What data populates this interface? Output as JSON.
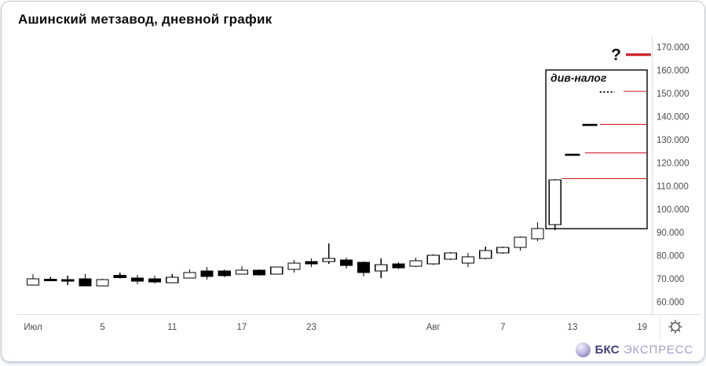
{
  "window": {
    "title": "Ашинский метзавод, дневной график"
  },
  "branding": {
    "name_bold": "БКС",
    "name_light": "ЭКСПРЕСС"
  },
  "controls": {
    "gear_icon": "chart-settings"
  },
  "colors": {
    "level_red": "#cc2128",
    "candle_black": "#000000",
    "candle_white": "#ffffff",
    "axis_text": "#4b4b4b",
    "divider_gray": "#dddddd",
    "box_black": "#000000"
  },
  "chart_data": {
    "type": "candlestick",
    "title": "Ашинский метзавод, дневной график",
    "timeframe": "дневной",
    "ylabel": "",
    "ylim": [
      55.5,
      172
    ],
    "y_ticks": [
      170,
      160,
      150,
      140,
      130,
      120,
      110,
      100,
      90,
      80,
      70,
      60
    ],
    "y_tick_suffix": ".000",
    "x_ticks": [
      {
        "i": 0,
        "label": "Июл"
      },
      {
        "i": 4,
        "label": "5"
      },
      {
        "i": 8,
        "label": "11"
      },
      {
        "i": 12,
        "label": "17"
      },
      {
        "i": 16,
        "label": "23"
      },
      {
        "i": 23,
        "label": "Авг"
      },
      {
        "i": 27,
        "label": "7"
      },
      {
        "i": 31,
        "label": "13"
      },
      {
        "i": 35,
        "label": "19"
      }
    ],
    "candle_fields": [
      "day_index",
      "open",
      "high",
      "low",
      "close"
    ],
    "candles": [
      [
        0,
        67.4,
        72.1,
        67.2,
        70.1
      ],
      [
        1,
        69.9,
        71.0,
        69.2,
        69.4
      ],
      [
        2,
        69.7,
        71.4,
        67.4,
        69.1
      ],
      [
        3,
        70.1,
        72.1,
        66.9,
        67.0
      ],
      [
        4,
        67.0,
        70.0,
        66.8,
        69.7
      ],
      [
        5,
        71.6,
        72.8,
        70.2,
        70.6
      ],
      [
        6,
        70.4,
        71.8,
        67.7,
        69.1
      ],
      [
        7,
        70.1,
        71.4,
        68.0,
        68.7
      ],
      [
        8,
        68.4,
        72.1,
        68.2,
        70.7
      ],
      [
        9,
        70.4,
        74.1,
        70.2,
        72.8
      ],
      [
        10,
        73.5,
        75.2,
        69.7,
        71.1
      ],
      [
        11,
        73.5,
        73.9,
        71.0,
        71.4
      ],
      [
        12,
        72.1,
        75.5,
        71.9,
        73.8
      ],
      [
        13,
        73.8,
        74.2,
        71.5,
        71.8
      ],
      [
        14,
        72.1,
        75.4,
        71.9,
        75.2
      ],
      [
        15,
        74.1,
        78.2,
        72.8,
        76.8
      ],
      [
        16,
        77.5,
        78.9,
        75.2,
        76.6
      ],
      [
        17,
        77.5,
        85.3,
        76.5,
        78.9
      ],
      [
        18,
        78.2,
        79.2,
        74.5,
        75.8
      ],
      [
        19,
        77.2,
        77.6,
        71.1,
        72.8
      ],
      [
        20,
        73.5,
        78.9,
        70.4,
        76.2
      ],
      [
        21,
        76.5,
        77.2,
        74.3,
        74.8
      ],
      [
        22,
        75.5,
        79.2,
        75.2,
        77.9
      ],
      [
        23,
        76.5,
        80.5,
        76.2,
        80.2
      ],
      [
        24,
        78.5,
        81.6,
        78.2,
        81.3
      ],
      [
        25,
        76.8,
        81.3,
        75.2,
        79.6
      ],
      [
        26,
        78.9,
        84.0,
        78.6,
        82.3
      ],
      [
        27,
        81.3,
        84.0,
        80.9,
        83.6
      ],
      [
        28,
        83.6,
        88.4,
        82.3,
        88.0
      ],
      [
        29,
        87.4,
        94.5,
        86.3,
        91.8
      ],
      [
        30,
        93.5,
        113.2,
        91.1,
        112.8
      ]
    ],
    "flat_candles": [
      {
        "i": 31,
        "price": 123.6,
        "style": "solid"
      },
      {
        "i": 32,
        "price": 136.5,
        "style": "solid"
      },
      {
        "i": 33,
        "price": 150.7,
        "style": "dotted"
      }
    ],
    "levels": [
      {
        "price": 113.3,
        "from_i": 30.4
      },
      {
        "price": 124.4,
        "from_i": 31.72
      },
      {
        "price": 136.7,
        "from_i": 32.58
      },
      {
        "price": 151.0,
        "from_i": 33.93
      }
    ],
    "annotation_box": {
      "label": "див-налог",
      "from_i": 29.47,
      "to_i": 35.29,
      "price_top": 160.2,
      "price_bottom": 91.7
    },
    "projection": {
      "symbol": "?",
      "price": 166.8,
      "from_i": 34.07,
      "to_i": 35.51
    },
    "grid": false,
    "legend": false
  }
}
